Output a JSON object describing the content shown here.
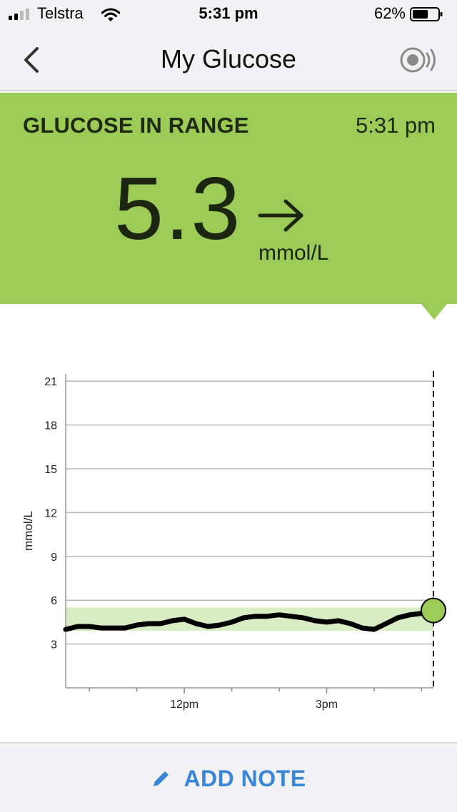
{
  "status_bar": {
    "carrier": "Telstra",
    "time": "5:31 pm",
    "battery_percent": "62%",
    "battery_level": 0.62
  },
  "nav": {
    "title": "My Glucose",
    "back_icon": "chevron-left-icon",
    "sensor_icon": "sensor-scan-icon"
  },
  "reading": {
    "status": "GLUCOSE IN RANGE",
    "time": "5:31 pm",
    "value": "5.3",
    "unit": "mmol/L",
    "trend": "steady-arrow-right"
  },
  "colors": {
    "in_range": "#9ccb57",
    "target_band": "#d9edc4",
    "accent": "#3a86d6"
  },
  "chart_data": {
    "type": "line",
    "ylabel": "mmol/L",
    "y_ticks": [
      3,
      6,
      9,
      12,
      15,
      18,
      21
    ],
    "x_tick_labels": [
      "12pm",
      "3pm"
    ],
    "ylim": [
      0,
      21.5
    ],
    "target_range": [
      3.9,
      5.5
    ],
    "grid": "horizontal",
    "series": [
      {
        "x": [
          9.5,
          9.75,
          10.0,
          10.25,
          10.5,
          10.75,
          11.0,
          11.25,
          11.5,
          11.75,
          12.0,
          12.25,
          12.5,
          12.75,
          13.0,
          13.25,
          13.5,
          13.75,
          14.0,
          14.25,
          14.5,
          14.75,
          15.0,
          15.25,
          15.5,
          15.75,
          16.0,
          16.25,
          16.5,
          16.75,
          17.0,
          17.25
        ],
        "values": [
          4.0,
          4.2,
          4.2,
          4.1,
          4.1,
          4.1,
          4.3,
          4.4,
          4.4,
          4.6,
          4.7,
          4.4,
          4.2,
          4.3,
          4.5,
          4.8,
          4.9,
          4.9,
          5.0,
          4.9,
          4.8,
          4.6,
          4.5,
          4.6,
          4.4,
          4.1,
          4.0,
          4.4,
          4.8,
          5.0,
          5.1,
          5.3
        ]
      }
    ]
  },
  "footer": {
    "add_note_label": "ADD NOTE",
    "add_note_icon": "pencil-icon"
  }
}
